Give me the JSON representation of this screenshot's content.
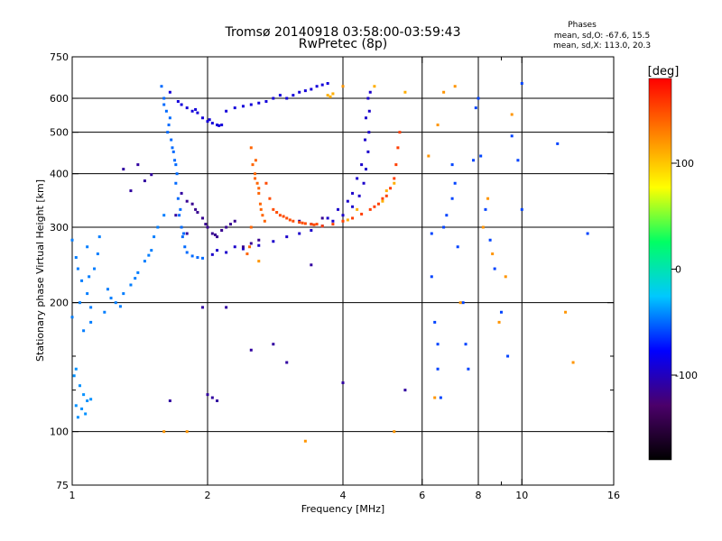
{
  "chart_data": {
    "type": "scatter",
    "title": "Tromsø 20140918 03:58:00-03:59:43",
    "subtitle": "RwPretec (8p)",
    "xlabel": "Frequency [MHz]",
    "ylabel": "Stationary phase Virtual Height [km]",
    "xscale": "log2",
    "yscale": "log",
    "xlim": [
      1,
      16
    ],
    "ylim": [
      75,
      750
    ],
    "x_ticks": [
      {
        "v": 1,
        "label": "1"
      },
      {
        "v": 2,
        "label": "2"
      },
      {
        "v": 4,
        "label": "4"
      },
      {
        "v": 6,
        "label": "6"
      },
      {
        "v": 8,
        "label": "8"
      },
      {
        "v": 10,
        "label": "10"
      },
      {
        "v": 16,
        "label": "16"
      }
    ],
    "x_minor_ticks": [
      9
    ],
    "x_grid": [
      2,
      4,
      6,
      8,
      10
    ],
    "y_ticks": [
      {
        "v": 75,
        "label": "75"
      },
      {
        "v": 100,
        "label": "100"
      },
      {
        "v": 200,
        "label": "200"
      },
      {
        "v": 300,
        "label": "300"
      },
      {
        "v": 400,
        "label": "400"
      },
      {
        "v": 500,
        "label": "500"
      },
      {
        "v": 600,
        "label": "600"
      },
      {
        "v": 750,
        "label": "750"
      }
    ],
    "y_minor_ticks": [
      125,
      150
    ],
    "y_grid": [
      100,
      200,
      300,
      400,
      500,
      600
    ],
    "grid": true,
    "stats": {
      "title": "Phases",
      "line_o": "mean, sd,O: -67.6, 15.5",
      "line_x": "mean, sd,X: 113.0, 20.3"
    },
    "colorbar": {
      "label": "[deg]",
      "range": [
        -180,
        180
      ],
      "ticks": [
        {
          "v": 100,
          "label": "100"
        },
        {
          "v": 0,
          "label": "0"
        },
        {
          "v": -100,
          "label": "-100"
        }
      ],
      "colors": [
        "#000000",
        "#4b006a",
        "#0000ff",
        "#00c8ff",
        "#00ff64",
        "#ffff00",
        "#ff8000",
        "#ff0000"
      ]
    },
    "series": [
      {
        "points": [
          [
            1.02,
            115
          ],
          [
            1.05,
            113
          ],
          [
            1.08,
            118
          ],
          [
            1.03,
            108
          ],
          [
            1.06,
            122
          ],
          [
            1.1,
            119
          ],
          [
            1.04,
            128
          ],
          [
            1.02,
            140
          ],
          [
            1.07,
            110
          ],
          [
            1.01,
            135
          ]
        ],
        "phase": -40
      },
      {
        "points": [
          [
            1.0,
            185
          ],
          [
            1.04,
            200
          ],
          [
            1.08,
            210
          ],
          [
            1.1,
            195
          ],
          [
            1.05,
            225
          ],
          [
            1.12,
            240
          ],
          [
            1.02,
            255
          ],
          [
            1.08,
            270
          ],
          [
            1.14,
            260
          ],
          [
            1.0,
            280
          ],
          [
            1.15,
            285
          ],
          [
            1.2,
            215
          ],
          [
            1.22,
            205
          ],
          [
            1.25,
            200
          ],
          [
            1.3,
            210
          ],
          [
            1.35,
            220
          ],
          [
            1.4,
            235
          ],
          [
            1.45,
            250
          ],
          [
            1.5,
            265
          ],
          [
            1.52,
            285
          ],
          [
            1.55,
            300
          ],
          [
            1.6,
            320
          ],
          [
            1.1,
            180
          ],
          [
            1.06,
            172
          ],
          [
            1.18,
            190
          ],
          [
            1.28,
            196
          ],
          [
            1.38,
            228
          ],
          [
            1.48,
            258
          ],
          [
            1.03,
            240
          ],
          [
            1.09,
            230
          ]
        ],
        "phase": -45
      },
      {
        "points": [
          [
            1.58,
            640
          ],
          [
            1.6,
            600
          ],
          [
            1.62,
            560
          ],
          [
            1.64,
            520
          ],
          [
            1.66,
            480
          ],
          [
            1.68,
            450
          ],
          [
            1.7,
            420
          ],
          [
            1.7,
            380
          ],
          [
            1.72,
            350
          ],
          [
            1.73,
            320
          ],
          [
            1.75,
            300
          ],
          [
            1.76,
            285
          ],
          [
            1.78,
            270
          ],
          [
            1.8,
            262
          ],
          [
            1.85,
            257
          ],
          [
            1.9,
            255
          ],
          [
            1.95,
            254
          ],
          [
            1.6,
            580
          ],
          [
            1.63,
            500
          ],
          [
            1.67,
            460
          ],
          [
            1.71,
            400
          ],
          [
            1.74,
            330
          ],
          [
            1.77,
            290
          ],
          [
            1.65,
            540
          ],
          [
            1.69,
            430
          ]
        ],
        "phase": -50
      },
      {
        "points": [
          [
            1.65,
            620
          ],
          [
            1.72,
            590
          ],
          [
            1.8,
            570
          ],
          [
            1.85,
            560
          ],
          [
            1.9,
            555
          ],
          [
            1.95,
            540
          ],
          [
            2.0,
            530
          ],
          [
            2.05,
            525
          ],
          [
            2.1,
            520
          ],
          [
            2.15,
            520
          ],
          [
            1.75,
            580
          ],
          [
            1.88,
            565
          ],
          [
            2.02,
            535
          ],
          [
            2.12,
            518
          ],
          [
            2.2,
            560
          ],
          [
            2.3,
            570
          ],
          [
            2.4,
            575
          ],
          [
            2.5,
            580
          ],
          [
            2.6,
            585
          ],
          [
            2.7,
            590
          ],
          [
            2.8,
            600
          ],
          [
            2.9,
            610
          ],
          [
            3.0,
            600
          ],
          [
            3.1,
            610
          ],
          [
            3.2,
            620
          ],
          [
            3.3,
            625
          ],
          [
            3.4,
            630
          ],
          [
            3.5,
            640
          ],
          [
            3.6,
            645
          ],
          [
            3.7,
            650
          ]
        ],
        "phase": -90
      },
      {
        "points": [
          [
            2.05,
            259
          ],
          [
            2.2,
            262
          ],
          [
            2.4,
            267
          ],
          [
            2.6,
            272
          ],
          [
            2.8,
            278
          ],
          [
            3.0,
            285
          ],
          [
            3.2,
            290
          ],
          [
            3.4,
            295
          ],
          [
            3.6,
            302
          ],
          [
            3.8,
            310
          ],
          [
            4.0,
            320
          ],
          [
            4.2,
            335
          ],
          [
            4.35,
            355
          ],
          [
            4.45,
            380
          ],
          [
            4.5,
            410
          ],
          [
            4.55,
            450
          ],
          [
            4.57,
            500
          ],
          [
            4.58,
            560
          ],
          [
            4.6,
            620
          ],
          [
            4.55,
            600
          ],
          [
            4.5,
            540
          ],
          [
            4.48,
            480
          ],
          [
            4.4,
            420
          ],
          [
            4.3,
            390
          ],
          [
            4.2,
            360
          ],
          [
            4.1,
            345
          ],
          [
            3.9,
            330
          ],
          [
            3.7,
            315
          ],
          [
            2.1,
            265
          ],
          [
            2.3,
            270
          ]
        ],
        "phase": -95
      },
      {
        "points": [
          [
            1.85,
            340
          ],
          [
            1.9,
            325
          ],
          [
            1.95,
            315
          ],
          [
            2.0,
            300
          ],
          [
            2.05,
            290
          ],
          [
            2.1,
            285
          ],
          [
            2.2,
            300
          ],
          [
            2.3,
            310
          ],
          [
            1.88,
            330
          ],
          [
            1.98,
            305
          ],
          [
            2.08,
            288
          ],
          [
            2.15,
            295
          ],
          [
            2.25,
            305
          ],
          [
            1.8,
            345
          ],
          [
            2.4,
            270
          ],
          [
            2.5,
            275
          ],
          [
            2.6,
            280
          ],
          [
            3.2,
            310
          ],
          [
            3.4,
            305
          ],
          [
            3.6,
            315
          ]
        ],
        "phase": -115
      },
      {
        "points": [
          [
            2.5,
            460
          ],
          [
            2.52,
            420
          ],
          [
            2.55,
            400
          ],
          [
            2.58,
            380
          ],
          [
            2.6,
            360
          ],
          [
            2.62,
            340
          ],
          [
            2.65,
            320
          ],
          [
            2.68,
            310
          ],
          [
            2.5,
            300
          ],
          [
            2.48,
            270
          ],
          [
            2.45,
            260
          ],
          [
            2.55,
            390
          ],
          [
            2.6,
            370
          ],
          [
            2.56,
            430
          ],
          [
            2.63,
            330
          ]
        ],
        "phase": 140
      },
      {
        "points": [
          [
            2.7,
            380
          ],
          [
            2.75,
            350
          ],
          [
            2.8,
            330
          ],
          [
            2.9,
            320
          ],
          [
            3.0,
            315
          ],
          [
            3.1,
            310
          ],
          [
            3.2,
            308
          ],
          [
            3.3,
            306
          ],
          [
            3.4,
            305
          ],
          [
            3.5,
            305
          ],
          [
            2.85,
            325
          ],
          [
            2.95,
            318
          ],
          [
            3.05,
            312
          ],
          [
            3.25,
            307
          ],
          [
            3.45,
            304
          ]
        ],
        "phase": 150
      },
      {
        "points": [
          [
            3.6,
            302
          ],
          [
            3.8,
            305
          ],
          [
            4.0,
            310
          ],
          [
            4.2,
            315
          ],
          [
            4.4,
            322
          ],
          [
            4.6,
            330
          ],
          [
            4.8,
            340
          ],
          [
            5.0,
            355
          ],
          [
            5.1,
            370
          ],
          [
            5.2,
            390
          ],
          [
            5.25,
            420
          ],
          [
            5.3,
            460
          ],
          [
            5.35,
            500
          ],
          [
            4.9,
            350
          ],
          [
            4.7,
            335
          ]
        ],
        "phase": 155
      },
      {
        "points": [
          [
            3.7,
            610
          ],
          [
            3.75,
            605
          ],
          [
            3.8,
            615
          ],
          [
            4.7,
            640
          ],
          [
            5.5,
            620
          ],
          [
            5.2,
            380
          ],
          [
            5.0,
            365
          ],
          [
            4.9,
            345
          ],
          [
            4.3,
            330
          ],
          [
            4.1,
            312
          ]
        ],
        "phase": 110
      },
      {
        "points": [
          [
            6.3,
            290
          ],
          [
            6.3,
            230
          ],
          [
            6.4,
            180
          ],
          [
            6.5,
            160
          ],
          [
            6.5,
            140
          ],
          [
            6.6,
            120
          ],
          [
            6.7,
            300
          ],
          [
            6.8,
            320
          ],
          [
            7.0,
            350
          ],
          [
            7.0,
            420
          ],
          [
            7.1,
            380
          ],
          [
            7.2,
            270
          ],
          [
            7.4,
            200
          ],
          [
            7.5,
            160
          ],
          [
            7.6,
            140
          ],
          [
            7.8,
            430
          ],
          [
            7.9,
            570
          ],
          [
            8.0,
            600
          ],
          [
            8.1,
            440
          ],
          [
            8.3,
            330
          ],
          [
            8.5,
            280
          ],
          [
            8.7,
            240
          ],
          [
            9.0,
            190
          ],
          [
            9.3,
            150
          ],
          [
            9.5,
            490
          ],
          [
            9.8,
            430
          ],
          [
            10.0,
            650
          ],
          [
            10.0,
            330
          ],
          [
            12.0,
            470
          ],
          [
            14.0,
            290
          ]
        ],
        "phase": -60
      },
      {
        "points": [
          [
            6.2,
            440
          ],
          [
            6.5,
            520
          ],
          [
            6.7,
            620
          ],
          [
            7.3,
            200
          ],
          [
            8.2,
            300
          ],
          [
            8.6,
            260
          ],
          [
            9.2,
            230
          ],
          [
            9.5,
            550
          ],
          [
            12.5,
            190
          ],
          [
            13.0,
            145
          ],
          [
            6.4,
            120
          ],
          [
            7.1,
            640
          ],
          [
            8.4,
            350
          ],
          [
            8.9,
            180
          ],
          [
            1.8,
            100
          ],
          [
            1.6,
            100
          ],
          [
            2.6,
            250
          ],
          [
            3.3,
            95
          ],
          [
            4.0,
            640
          ],
          [
            5.2,
            100
          ]
        ],
        "phase": 120
      },
      {
        "points": [
          [
            1.3,
            410
          ],
          [
            1.4,
            420
          ],
          [
            1.35,
            365
          ],
          [
            1.45,
            385
          ],
          [
            1.5,
            398
          ],
          [
            1.65,
            118
          ],
          [
            2.05,
            120
          ],
          [
            2.1,
            118
          ],
          [
            2.0,
            122
          ],
          [
            2.8,
            160
          ],
          [
            3.4,
            245
          ],
          [
            2.2,
            195
          ],
          [
            1.95,
            195
          ],
          [
            4.0,
            130
          ],
          [
            5.5,
            125
          ],
          [
            2.5,
            155
          ],
          [
            3.0,
            145
          ],
          [
            1.7,
            320
          ],
          [
            1.75,
            360
          ],
          [
            1.8,
            290
          ]
        ],
        "phase": -110
      }
    ]
  }
}
